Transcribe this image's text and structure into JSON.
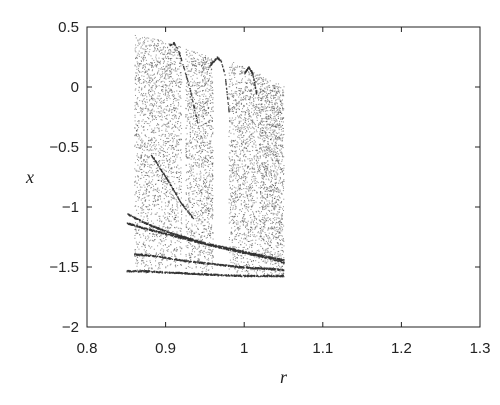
{
  "chart_data": {
    "type": "scatter",
    "title": "",
    "xlabel": "r",
    "ylabel": "x",
    "xlim": [
      0.8,
      1.3
    ],
    "ylim": [
      -2,
      0.5
    ],
    "xticks": [
      0.8,
      0.9,
      1,
      1.1,
      1.2,
      1.3
    ],
    "xtick_labels": [
      "0.8",
      "0.9",
      "1",
      "1.1",
      "1.2",
      "1.3"
    ],
    "yticks": [
      -2,
      -1.5,
      -1,
      -0.5,
      0,
      0.5
    ],
    "ytick_labels": [
      "−2",
      "−1.5",
      "−1",
      "−0.5",
      "0",
      "0.5"
    ],
    "grid": false,
    "marker_color": "#333333",
    "series": [
      {
        "chaotic_bands": [
          {
            "r": [
              0.86,
              0.88
            ],
            "x": [
              -1.55,
              0.45
            ]
          },
          {
            "r": [
              0.88,
              0.9
            ],
            "x": [
              -1.52,
              0.42
            ]
          },
          {
            "r": [
              0.9,
              0.92
            ],
            "x": [
              -1.5,
              0.38
            ]
          },
          {
            "r": [
              0.925,
              0.945
            ],
            "x": [
              -1.52,
              0.32
            ]
          },
          {
            "r": [
              0.945,
              0.96
            ],
            "x": [
              -1.55,
              0.28
            ]
          },
          {
            "r": [
              0.98,
              1.0
            ],
            "x": [
              -1.57,
              0.22
            ]
          },
          {
            "r": [
              1.0,
              1.02
            ],
            "x": [
              -1.57,
              0.15
            ]
          },
          {
            "r": [
              1.02,
              1.035
            ],
            "x": [
              -1.57,
              0.1
            ]
          },
          {
            "r": [
              1.035,
              1.05
            ],
            "x": [
              -1.57,
              0.06
            ]
          }
        ],
        "branches": [
          {
            "r": [
              0.85,
              0.87,
              0.9,
              0.93,
              0.96,
              1.0,
              1.03,
              1.05
            ],
            "x": [
              -1.53,
              -1.53,
              -1.54,
              -1.55,
              -1.56,
              -1.57,
              -1.57,
              -1.57
            ]
          },
          {
            "r": [
              0.86,
              0.88,
              0.9,
              0.93,
              0.96,
              1.0,
              1.03,
              1.05
            ],
            "x": [
              -1.39,
              -1.4,
              -1.42,
              -1.45,
              -1.47,
              -1.5,
              -1.51,
              -1.52
            ]
          },
          {
            "r": [
              0.85,
              0.87,
              0.9,
              0.93,
              0.96,
              1.0,
              1.03,
              1.05
            ],
            "x": [
              -1.13,
              -1.17,
              -1.22,
              -1.27,
              -1.32,
              -1.38,
              -1.42,
              -1.46
            ]
          },
          {
            "r": [
              0.85,
              0.87,
              0.9,
              0.92,
              0.95,
              0.98,
              1.0,
              1.03,
              1.05
            ],
            "x": [
              -1.05,
              -1.12,
              -1.2,
              -1.24,
              -1.3,
              -1.34,
              -1.37,
              -1.41,
              -1.44
            ]
          },
          {
            "r": [
              0.88,
              0.9,
              0.91,
              0.92,
              0.93,
              0.935
            ],
            "x": [
              -0.55,
              -0.75,
              -0.86,
              -0.97,
              -1.05,
              -1.1
            ]
          },
          {
            "r": [
              0.905,
              0.91,
              0.915,
              0.92,
              0.93,
              0.94
            ],
            "x": [
              0.35,
              0.37,
              0.32,
              0.22,
              0.0,
              -0.3
            ]
          },
          {
            "r": [
              0.955,
              0.965,
              0.97,
              0.975,
              0.98
            ],
            "x": [
              0.18,
              0.25,
              0.22,
              0.1,
              -0.2
            ]
          },
          {
            "r": [
              1.0,
              1.005,
              1.01,
              1.015
            ],
            "x": [
              0.12,
              0.17,
              0.12,
              -0.05
            ]
          }
        ]
      }
    ]
  }
}
